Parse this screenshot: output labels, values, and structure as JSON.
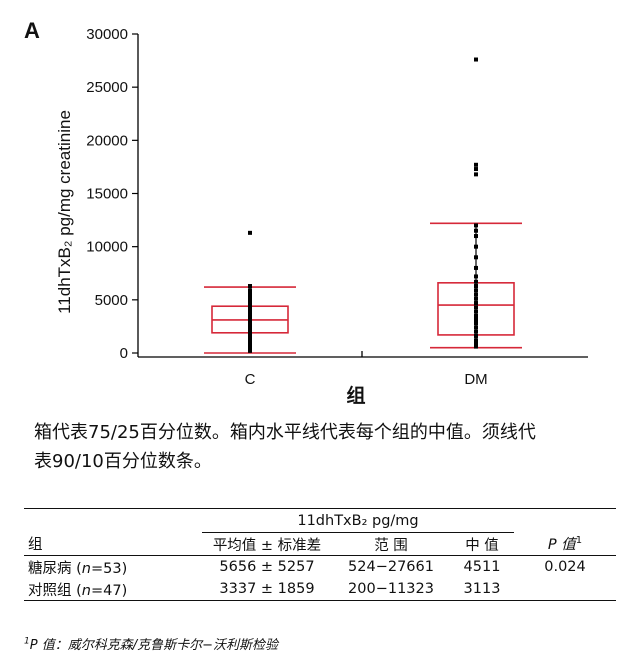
{
  "panel_label": "A",
  "chart_data": {
    "type": "box",
    "ylabel": "11dhTxB₂ pg/mg creatinine",
    "xlabel": "组",
    "ylim": [
      0,
      30000
    ],
    "yticks": [
      0,
      5000,
      10000,
      15000,
      20000,
      25000,
      30000
    ],
    "categories": [
      "C",
      "DM"
    ],
    "series": [
      {
        "category": "C",
        "p10": 0,
        "p25": 1900,
        "median": 3113,
        "p75": 4400,
        "p90": 6200,
        "points": [
          11300,
          6300,
          5900,
          5600,
          5300,
          5000,
          4700,
          4500,
          4200,
          3900,
          3600,
          3300,
          3100,
          2800,
          2500,
          2200,
          1900,
          1600,
          1300,
          1000,
          700,
          400,
          200
        ]
      },
      {
        "category": "DM",
        "p10": 500,
        "p25": 1700,
        "median": 4511,
        "p75": 6600,
        "p90": 12200,
        "points": [
          27600,
          17700,
          17300,
          16800,
          12000,
          11500,
          11000,
          10000,
          9000,
          8000,
          7200,
          6700,
          6300,
          5900,
          5500,
          5100,
          4700,
          4300,
          3900,
          3500,
          3300,
          3100,
          2800,
          2400,
          2000,
          1600,
          1200,
          900,
          600
        ]
      }
    ],
    "colors": {
      "box": "#d62839",
      "points": "#000000",
      "axis": "#000000"
    }
  },
  "caption": {
    "line1": "箱代表75/25百分位数。箱内水平线代表每个组的中值。须线代",
    "line2": "表90/10百分位数条。"
  },
  "table": {
    "measure_header": "11dhTxB₂ pg/mg",
    "group_header": "组",
    "mean_header": "平均值 ± 标准差",
    "range_header": "范 围",
    "median_header": "中 值",
    "p_header": "P 值",
    "p_sup": "1",
    "rows": [
      {
        "group": "糖尿病",
        "n_label": "n",
        "n_value": "=53",
        "mean": "5656 ± 5257",
        "range": "524−27661",
        "median": "4511",
        "p": "0.024"
      },
      {
        "group": "对照组",
        "n_label": "n",
        "n_value": "=47",
        "mean": "3337 ± 1859",
        "range": "200−11323",
        "median": "3113",
        "p": ""
      }
    ]
  },
  "footnote": {
    "sup": "1",
    "p_label": "P 值：",
    "text": "威尔科克森/克鲁斯卡尔−沃利斯检验"
  }
}
